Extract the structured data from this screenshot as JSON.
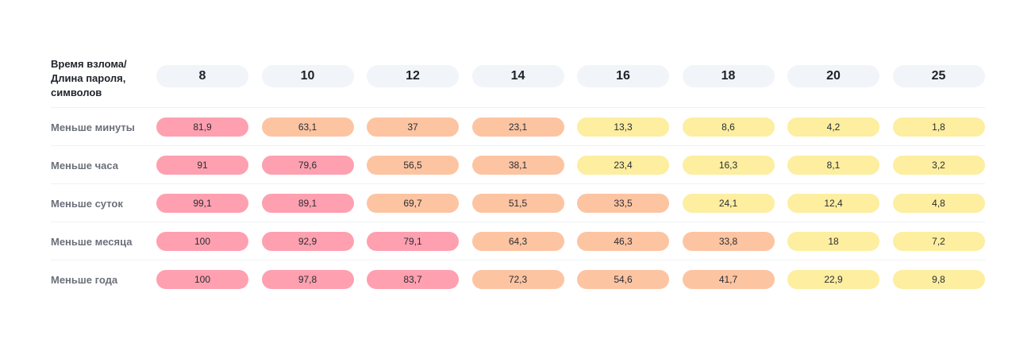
{
  "corner_label": [
    "Время взлома/",
    "Длина пароля,",
    "символов"
  ],
  "colors": {
    "high": "#fea0b0",
    "mid": "#fdc4a2",
    "low": "#fdeea0",
    "header_bg": "#f1f4f8"
  },
  "chart_data": {
    "type": "table",
    "categories": [
      "8",
      "10",
      "12",
      "14",
      "16",
      "18",
      "20",
      "25"
    ],
    "series": [
      {
        "name": "Меньше минуты",
        "values": [
          "81,9",
          "63,1",
          "37",
          "23,1",
          "13,3",
          "8,6",
          "4,2",
          "1,8"
        ],
        "levels": [
          "high",
          "mid",
          "mid",
          "mid",
          "low",
          "low",
          "low",
          "low"
        ]
      },
      {
        "name": "Меньше часа",
        "values": [
          "91",
          "79,6",
          "56,5",
          "38,1",
          "23,4",
          "16,3",
          "8,1",
          "3,2"
        ],
        "levels": [
          "high",
          "high",
          "mid",
          "mid",
          "low",
          "low",
          "low",
          "low"
        ]
      },
      {
        "name": "Меньше суток",
        "values": [
          "99,1",
          "89,1",
          "69,7",
          "51,5",
          "33,5",
          "24,1",
          "12,4",
          "4,8"
        ],
        "levels": [
          "high",
          "high",
          "mid",
          "mid",
          "mid",
          "low",
          "low",
          "low"
        ]
      },
      {
        "name": "Меньше месяца",
        "values": [
          "100",
          "92,9",
          "79,1",
          "64,3",
          "46,3",
          "33,8",
          "18",
          "7,2"
        ],
        "levels": [
          "high",
          "high",
          "high",
          "mid",
          "mid",
          "mid",
          "low",
          "low"
        ]
      },
      {
        "name": "Меньше года",
        "values": [
          "100",
          "97,8",
          "83,7",
          "72,3",
          "54,6",
          "41,7",
          "22,9",
          "9,8"
        ],
        "levels": [
          "high",
          "high",
          "high",
          "mid",
          "mid",
          "mid",
          "low",
          "low"
        ]
      }
    ]
  }
}
